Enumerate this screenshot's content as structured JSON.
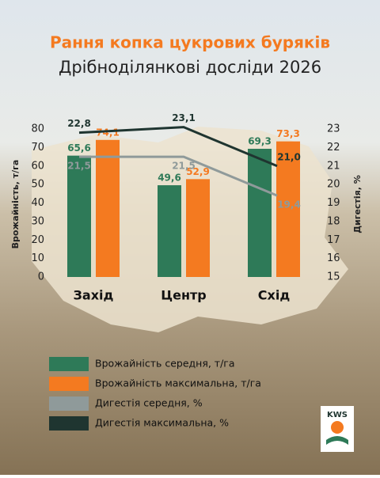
{
  "chart_data": {
    "type": "bar-line",
    "title": "Рання копка цукрових буряків",
    "subtitle": "Дрібноділянкові досліди 2026",
    "y_label": "Врожайність, т/га",
    "y2_label": "Дигестія, %",
    "categories": [
      "Захід",
      "Центр",
      "Схід"
    ],
    "ylim": [
      0,
      80
    ],
    "yticks": [
      0,
      10,
      20,
      30,
      40,
      50,
      60,
      70,
      80
    ],
    "y2lim": [
      15,
      23
    ],
    "y2ticks": [
      15,
      16,
      17,
      18,
      19,
      20,
      21,
      22,
      23
    ],
    "series": [
      {
        "name": "Врожайність середня, т/га",
        "kind": "bar",
        "color": "#2e7a58",
        "values": [
          65.6,
          49.6,
          69.3
        ],
        "value_labels": [
          "65,6",
          "49,6",
          "69,3"
        ]
      },
      {
        "name": "Врожайність максимальна, т/га",
        "kind": "bar",
        "color": "#f47a20",
        "values": [
          74.1,
          52.9,
          73.3
        ],
        "value_labels": [
          "74,1",
          "52,9",
          "73,3"
        ]
      },
      {
        "name": "Дигестія середня, %",
        "kind": "line",
        "axis": "y2",
        "color": "#8f9a9a",
        "values": [
          21.5,
          21.5,
          19.4
        ],
        "value_labels": [
          "21,5",
          "21,5",
          "19,4"
        ]
      },
      {
        "name": "Дигестія максимальна, %",
        "kind": "line",
        "axis": "y2",
        "color": "#1f3530",
        "values": [
          22.8,
          23.1,
          21.0
        ],
        "value_labels": [
          "22,8",
          "23,1",
          "21,0"
        ]
      }
    ],
    "logo": "KWS"
  }
}
